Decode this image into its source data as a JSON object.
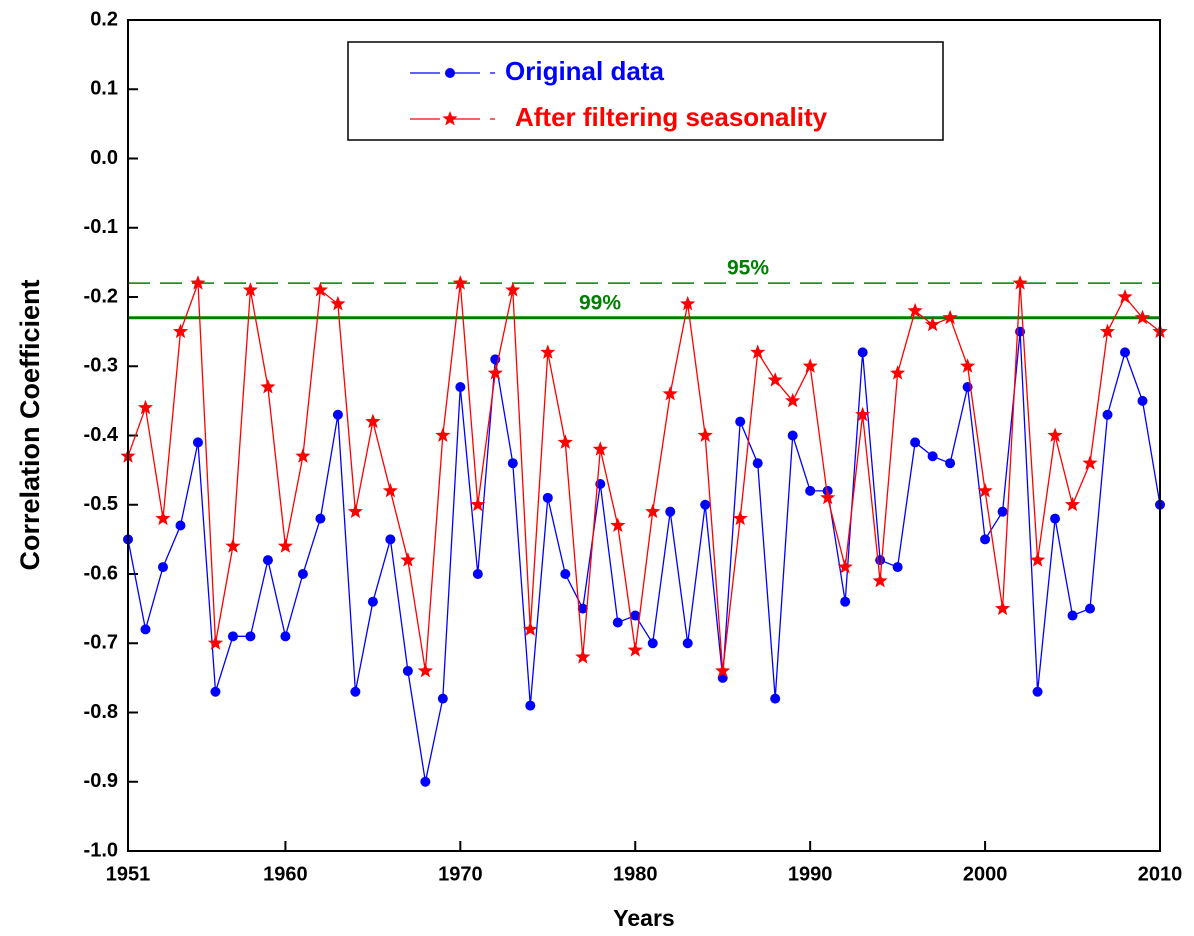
{
  "chart_data": {
    "type": "line",
    "x_label": "Years",
    "y_label": "Correlation Coefficient",
    "x": [
      1951,
      1952,
      1953,
      1954,
      1955,
      1956,
      1957,
      1958,
      1959,
      1960,
      1961,
      1962,
      1963,
      1964,
      1965,
      1966,
      1967,
      1968,
      1969,
      1970,
      1971,
      1972,
      1973,
      1974,
      1975,
      1976,
      1977,
      1978,
      1979,
      1980,
      1981,
      1982,
      1983,
      1984,
      1985,
      1986,
      1987,
      1988,
      1989,
      1990,
      1991,
      1992,
      1993,
      1994,
      1995,
      1996,
      1997,
      1998,
      1999,
      2000,
      2001,
      2002,
      2003,
      2004,
      2005,
      2006,
      2007,
      2008,
      2009,
      2010
    ],
    "series": [
      {
        "name": "Original data",
        "color": "#0000ff",
        "marker": "circle",
        "values": [
          -0.55,
          -0.68,
          -0.59,
          -0.53,
          -0.41,
          -0.77,
          -0.69,
          -0.69,
          -0.58,
          -0.69,
          -0.6,
          -0.52,
          -0.37,
          -0.77,
          -0.64,
          -0.55,
          -0.74,
          -0.9,
          -0.78,
          -0.33,
          -0.6,
          -0.29,
          -0.44,
          -0.79,
          -0.49,
          -0.6,
          -0.65,
          -0.47,
          -0.67,
          -0.66,
          -0.7,
          -0.51,
          -0.7,
          -0.5,
          -0.75,
          -0.38,
          -0.44,
          -0.78,
          -0.4,
          -0.48,
          -0.48,
          -0.64,
          -0.28,
          -0.58,
          -0.59,
          -0.41,
          -0.43,
          -0.44,
          -0.33,
          -0.55,
          -0.51,
          -0.25,
          -0.77,
          -0.52,
          -0.66,
          -0.65,
          -0.37,
          -0.28,
          -0.35,
          -0.5
        ]
      },
      {
        "name": "After filtering seasonality",
        "color": "#ff0000",
        "marker": "star",
        "values": [
          -0.43,
          -0.36,
          -0.52,
          -0.25,
          -0.18,
          -0.7,
          -0.56,
          -0.19,
          -0.33,
          -0.56,
          -0.43,
          -0.19,
          -0.21,
          -0.51,
          -0.38,
          -0.48,
          -0.58,
          -0.74,
          -0.4,
          -0.18,
          -0.5,
          -0.31,
          -0.19,
          -0.68,
          -0.28,
          -0.41,
          -0.72,
          -0.42,
          -0.53,
          -0.71,
          -0.51,
          -0.34,
          -0.21,
          -0.4,
          -0.74,
          -0.52,
          -0.28,
          -0.32,
          -0.35,
          -0.3,
          -0.49,
          -0.59,
          -0.37,
          -0.61,
          -0.31,
          -0.22,
          -0.24,
          -0.23,
          -0.3,
          -0.48,
          -0.65,
          -0.18,
          -0.58,
          -0.4,
          -0.5,
          -0.44,
          -0.25,
          -0.2,
          -0.23,
          -0.25
        ]
      }
    ],
    "reference_lines": [
      {
        "label": "95%",
        "value": -0.18,
        "color": "#008000",
        "style": "dashed"
      },
      {
        "label": "99%",
        "value": -0.23,
        "color": "#008000",
        "style": "solid"
      }
    ],
    "xlim": [
      1951,
      2010
    ],
    "xticks": [
      1951,
      1960,
      1970,
      1980,
      1990,
      2000,
      2010
    ],
    "ylim": [
      -1,
      0.2
    ],
    "yticks": [
      0.2,
      0.1,
      {
        "value": 0,
        "label": "0.0"
      },
      -0.1,
      -0.2,
      -0.3,
      -0.4,
      -0.5,
      -0.6,
      -0.7,
      -0.8,
      -0.9,
      {
        "value": -1,
        "label": "-1.0"
      }
    ],
    "legend": "top-center"
  }
}
